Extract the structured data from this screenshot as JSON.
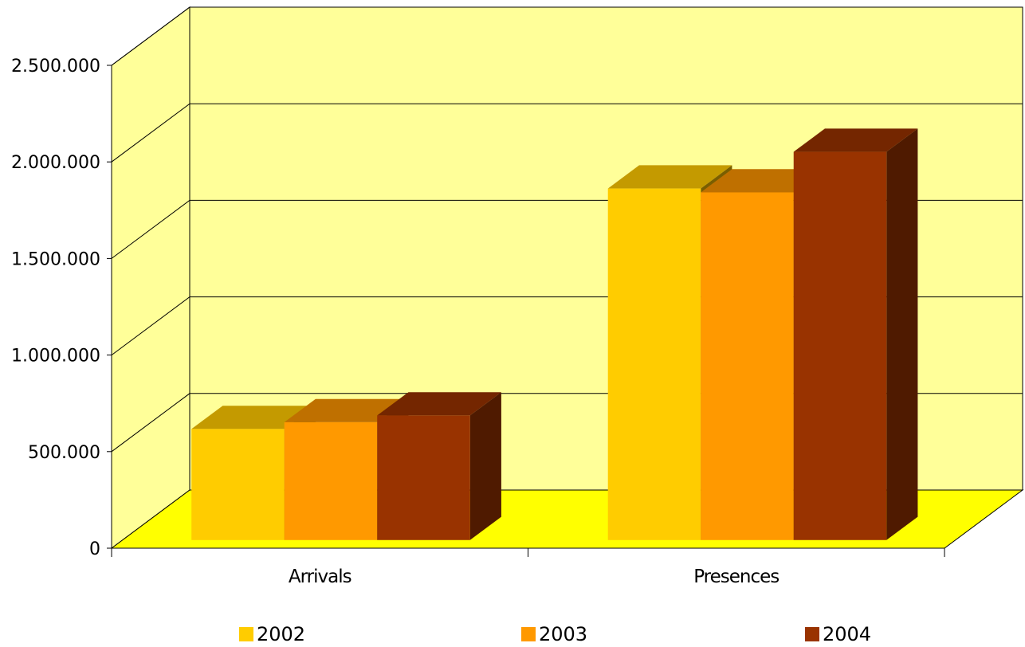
{
  "chart_data": {
    "type": "bar",
    "categories": [
      "Arrivals",
      "Presences"
    ],
    "series": [
      {
        "name": "2002",
        "values": [
          575000,
          1820000
        ],
        "color": "#FFCC00",
        "top_color": "#C49A00",
        "side_color": "#7A5E00"
      },
      {
        "name": "2003",
        "values": [
          610000,
          1800000
        ],
        "color": "#FF9900",
        "top_color": "#BF7000",
        "side_color": "#7A4600"
      },
      {
        "name": "2004",
        "values": [
          645000,
          2010000
        ],
        "color": "#993300",
        "top_color": "#742600",
        "side_color": "#4F1A00"
      }
    ],
    "y_ticks": [
      {
        "value": 0,
        "label": "0"
      },
      {
        "value": 500000,
        "label": "500.000"
      },
      {
        "value": 1000000,
        "label": "1.000.000"
      },
      {
        "value": 1500000,
        "label": "1.500.000"
      },
      {
        "value": 2000000,
        "label": "2.000.000"
      },
      {
        "value": 2500000,
        "label": "2.500.000"
      }
    ],
    "ylim": [
      0,
      2500000
    ],
    "title": "",
    "xlabel": "",
    "ylabel": "",
    "grid": true,
    "legend_position": "bottom",
    "colors": {
      "back_wall": "#FFFF99",
      "floor": "#FFFF00",
      "side_wall": "#FFFF99"
    }
  }
}
